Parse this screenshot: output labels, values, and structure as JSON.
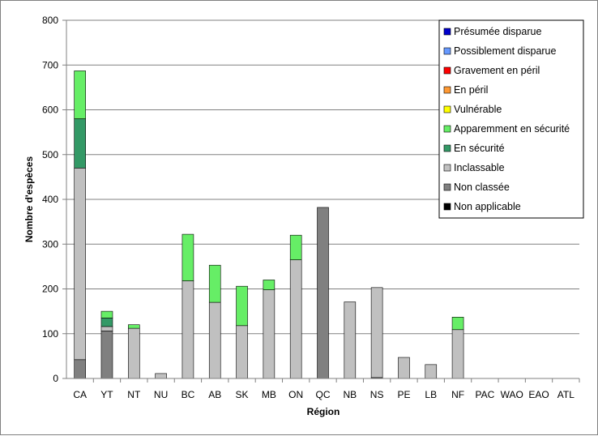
{
  "chart_data": {
    "type": "bar",
    "stacked": true,
    "title": "",
    "xlabel": "Région",
    "ylabel": "Nombre d'espèces",
    "ylim": [
      0,
      800
    ],
    "yticks": [
      0,
      100,
      200,
      300,
      400,
      500,
      600,
      700,
      800
    ],
    "grid": true,
    "legend_position": "top-right",
    "categories": [
      "CA",
      "YT",
      "NT",
      "NU",
      "BC",
      "AB",
      "SK",
      "MB",
      "ON",
      "QC",
      "NB",
      "NS",
      "PE",
      "LB",
      "NF",
      "PAC",
      "WAO",
      "EAO",
      "ATL"
    ],
    "series": [
      {
        "name": "Non applicable",
        "color": "#000000",
        "values": [
          0,
          0,
          0,
          0,
          0,
          0,
          0,
          0,
          0,
          0,
          0,
          0,
          0,
          0,
          0,
          0,
          0,
          0,
          0
        ]
      },
      {
        "name": "Non classée",
        "color": "#808080",
        "values": [
          42,
          106,
          0,
          0,
          0,
          0,
          0,
          0,
          0,
          382,
          0,
          2,
          0,
          0,
          0,
          0,
          0,
          0,
          0
        ]
      },
      {
        "name": "Inclassable",
        "color": "#c0c0c0",
        "values": [
          428,
          10,
          112,
          11,
          218,
          170,
          118,
          198,
          265,
          0,
          171,
          201,
          47,
          31,
          109,
          0,
          0,
          0,
          0
        ]
      },
      {
        "name": "En sécurité",
        "color": "#339966",
        "values": [
          110,
          19,
          0,
          0,
          0,
          0,
          0,
          0,
          0,
          0,
          0,
          0,
          0,
          0,
          0,
          0,
          0,
          0,
          0
        ]
      },
      {
        "name": "Apparemment en sécurité",
        "color": "#66ee66",
        "values": [
          107,
          15,
          8,
          0,
          104,
          83,
          88,
          22,
          55,
          0,
          0,
          0,
          0,
          0,
          28,
          0,
          0,
          0,
          0
        ]
      },
      {
        "name": "Vulnérable",
        "color": "#ffff00",
        "values": [
          0,
          0,
          0,
          0,
          0,
          0,
          0,
          0,
          0,
          0,
          0,
          0,
          0,
          0,
          0,
          0,
          0,
          0,
          0
        ]
      },
      {
        "name": "En péril",
        "color": "#ff9933",
        "values": [
          0,
          0,
          0,
          0,
          0,
          0,
          0,
          0,
          0,
          0,
          0,
          0,
          0,
          0,
          0,
          0,
          0,
          0,
          0
        ]
      },
      {
        "name": "Gravement en péril",
        "color": "#ff0000",
        "values": [
          0,
          0,
          0,
          0,
          0,
          0,
          0,
          0,
          0,
          0,
          0,
          0,
          0,
          0,
          0,
          0,
          0,
          0,
          0
        ]
      },
      {
        "name": "Possiblement disparue",
        "color": "#6699ff",
        "values": [
          0,
          0,
          0,
          0,
          0,
          0,
          0,
          0,
          0,
          0,
          0,
          0,
          0,
          0,
          0,
          0,
          0,
          0,
          0
        ]
      },
      {
        "name": "Présumée disparue",
        "color": "#0000cc",
        "values": [
          0,
          0,
          0,
          0,
          0,
          0,
          0,
          0,
          0,
          0,
          0,
          0,
          0,
          0,
          0,
          0,
          0,
          0,
          0
        ]
      }
    ],
    "legend_order": [
      "Présumée disparue",
      "Possiblement disparue",
      "Gravement en péril",
      "En péril",
      "Vulnérable",
      "Apparemment en sécurité",
      "En sécurité",
      "Inclassable",
      "Non classée",
      "Non applicable"
    ]
  }
}
